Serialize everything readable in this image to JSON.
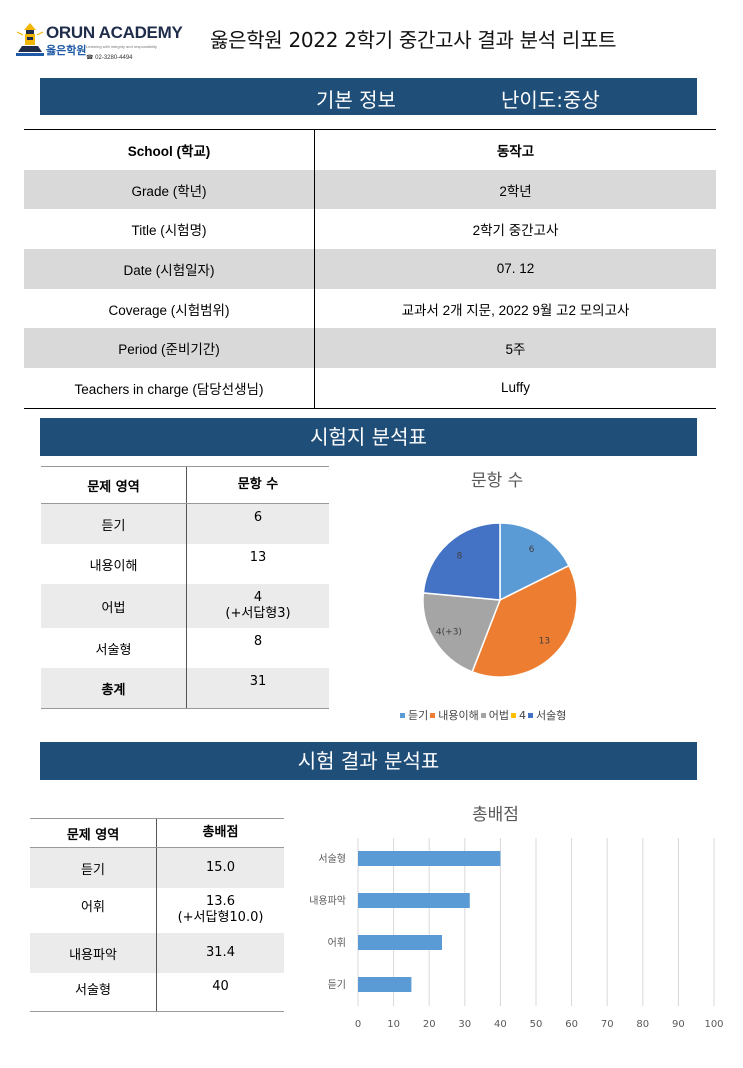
{
  "header": {
    "brand_name": "ORUN ACADEMY",
    "brand_korean": "옳은학원",
    "brand_tagline": "Learning with integrity and responsibility",
    "brand_phone": "02-3280-4494",
    "title": "옳은학원 2022 2학기 중간고사 결과 분석 리포트"
  },
  "basic_info": {
    "section_label": "기본 정보",
    "difficulty_label": "난이도:중상",
    "rows": [
      {
        "label": "School (학교)",
        "value": "동작고"
      },
      {
        "label": "Grade (학년)",
        "value": "2학년"
      },
      {
        "label": "Title (시험명)",
        "value": "2학기 중간고사"
      },
      {
        "label": "Date (시험일자)",
        "value": "07. 12"
      },
      {
        "label": "Coverage (시험범위)",
        "value": "교과서 2개 지문, 2022 9월 고2 모의고사"
      },
      {
        "label": "Period (준비기간)",
        "value": "5주"
      },
      {
        "label": "Teachers in charge (담당선생님)",
        "value": "Luffy"
      }
    ]
  },
  "exam_analysis": {
    "section_label": "시험지 분석표",
    "table": {
      "headers": [
        "문제 영역",
        "문항 수"
      ],
      "rows": [
        {
          "area": "듣기",
          "count": "6",
          "note": ""
        },
        {
          "area": "내용이해",
          "count": "13",
          "note": ""
        },
        {
          "area": "어법",
          "count": "4",
          "note": "(+서답형3)"
        },
        {
          "area": "서술형",
          "count": "8",
          "note": ""
        },
        {
          "area": "총계",
          "count": "31",
          "note": ""
        }
      ]
    }
  },
  "result_analysis": {
    "section_label": "시험 결과 분석표",
    "table": {
      "headers": [
        "문제 영역",
        "총배점"
      ],
      "rows": [
        {
          "area": "듣기",
          "score": "15.0",
          "note": ""
        },
        {
          "area": "어휘",
          "score": "13.6",
          "note": "(+서답형10.0)"
        },
        {
          "area": "내용파악",
          "score": "31.4",
          "note": ""
        },
        {
          "area": "서술형",
          "score": "40",
          "note": ""
        }
      ]
    }
  },
  "chart_data": [
    {
      "type": "pie",
      "title": "문항 수",
      "categories": [
        "듣기",
        "내용이해",
        "어법",
        "4",
        "서술형"
      ],
      "values": [
        6,
        13,
        7,
        0,
        8
      ],
      "data_labels": [
        "6",
        "13",
        "4(+3)",
        "",
        "8"
      ],
      "colors": [
        "#5b9bd5",
        "#ed7d31",
        "#a5a5a5",
        "#ffc000",
        "#4472c4"
      ],
      "legend_position": "bottom"
    },
    {
      "type": "bar",
      "orientation": "horizontal",
      "title": "총배점",
      "categories": [
        "서술형",
        "내용파악",
        "어휘",
        "듣기"
      ],
      "values": [
        40,
        31.4,
        23.6,
        15
      ],
      "xlim": [
        0,
        100
      ],
      "xticks": [
        0,
        10,
        20,
        30,
        40,
        50,
        60,
        70,
        80,
        90,
        100
      ],
      "grid": true,
      "color": "#5b9bd5"
    }
  ]
}
